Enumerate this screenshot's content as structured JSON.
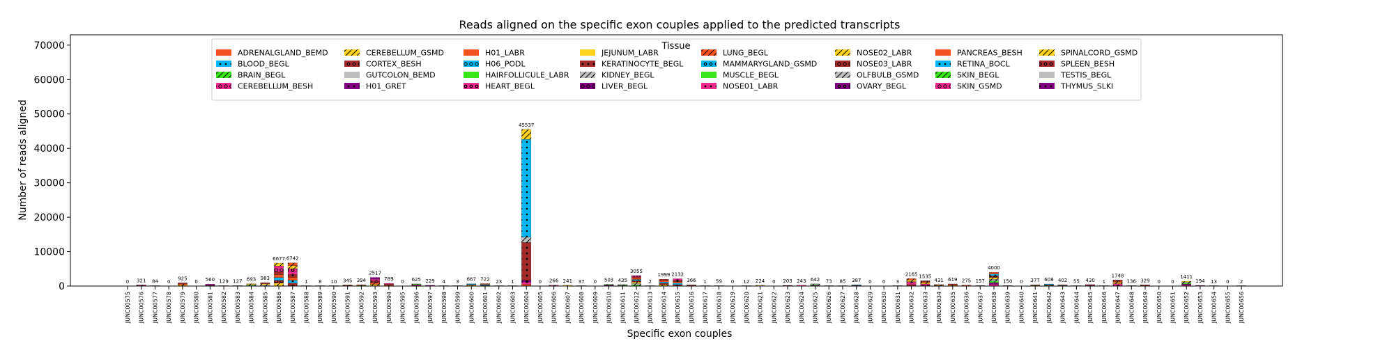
{
  "chart_data": {
    "type": "bar",
    "stacked": true,
    "title": "Reads aligned on the specific exon couples applied to the predicted transcripts",
    "xlabel": "Specific exon couples",
    "ylabel": "Number of reads aligned",
    "ylim": [
      0,
      73000
    ],
    "yticks": [
      0,
      10000,
      20000,
      30000,
      40000,
      50000,
      60000,
      70000
    ],
    "ytick_labels": [
      "0",
      "10000",
      "20000",
      "30000",
      "40000",
      "50000",
      "60000",
      "70000"
    ],
    "legend": {
      "title": "Tissue",
      "placement": "top-center",
      "entries": [
        {
          "label": "ADRENALGLAND_BEMD",
          "color": "#f4511e",
          "pattern": "solid"
        },
        {
          "label": "BLOOD_BEGL",
          "color": "#03b7f2",
          "pattern": "dots"
        },
        {
          "label": "BRAIN_BEGL",
          "color": "#39e61b",
          "pattern": "slash"
        },
        {
          "label": "CEREBELLUM_BESH",
          "color": "#ef2c8f",
          "pattern": "rings"
        },
        {
          "label": "CEREBELLUM_GSMD",
          "color": "#ffd21f",
          "pattern": "slash"
        },
        {
          "label": "CORTEX_BESH",
          "color": "#a52a2a",
          "pattern": "circles"
        },
        {
          "label": "GUTCOLON_BEMD",
          "color": "#bdbdbd",
          "pattern": "solid"
        },
        {
          "label": "H01_GRET",
          "color": "#800080",
          "pattern": "dots"
        },
        {
          "label": "H01_LABR",
          "color": "#f4511e",
          "pattern": "solid"
        },
        {
          "label": "H06_PODL",
          "color": "#03b7f2",
          "pattern": "rings"
        },
        {
          "label": "HAIRFOLLICULE_LABR",
          "color": "#39e61b",
          "pattern": "solid"
        },
        {
          "label": "HEART_BEGL",
          "color": "#ef2c8f",
          "pattern": "circles"
        },
        {
          "label": "JEJUNUM_LABR",
          "color": "#ffd21f",
          "pattern": "solid"
        },
        {
          "label": "KERATINOCYTE_BEGL",
          "color": "#a52a2a",
          "pattern": "dots"
        },
        {
          "label": "KIDNEY_BEGL",
          "color": "#bdbdbd",
          "pattern": "slash"
        },
        {
          "label": "LIVER_BEGL",
          "color": "#800080",
          "pattern": "rings"
        },
        {
          "label": "LUNG_BEGL",
          "color": "#f4511e",
          "pattern": "slash"
        },
        {
          "label": "MAMMARYGLAND_GSMD",
          "color": "#03b7f2",
          "pattern": "circles"
        },
        {
          "label": "MUSCLE_BEGL",
          "color": "#39e61b",
          "pattern": "solid"
        },
        {
          "label": "NOSE01_LABR",
          "color": "#ef2c8f",
          "pattern": "dots"
        },
        {
          "label": "NOSE02_LABR",
          "color": "#ffd21f",
          "pattern": "slash"
        },
        {
          "label": "NOSE03_LABR",
          "color": "#a52a2a",
          "pattern": "rings"
        },
        {
          "label": "OLFBULB_GSMD",
          "color": "#bdbdbd",
          "pattern": "slash"
        },
        {
          "label": "OVARY_BEGL",
          "color": "#800080",
          "pattern": "circles"
        },
        {
          "label": "PANCREAS_BESH",
          "color": "#f4511e",
          "pattern": "solid"
        },
        {
          "label": "RETINA_BOCL",
          "color": "#03b7f2",
          "pattern": "dots"
        },
        {
          "label": "SKIN_BEGL",
          "color": "#39e61b",
          "pattern": "slash"
        },
        {
          "label": "SKIN_GSMD",
          "color": "#ef2c8f",
          "pattern": "rings"
        },
        {
          "label": "SPINALCORD_GSMD",
          "color": "#ffd21f",
          "pattern": "slash"
        },
        {
          "label": "SPLEEN_BESH",
          "color": "#a52a2a",
          "pattern": "circles"
        },
        {
          "label": "TESTIS_BEGL",
          "color": "#bdbdbd",
          "pattern": "solid"
        },
        {
          "label": "THYMUS_SLKI",
          "color": "#800080",
          "pattern": "dots"
        }
      ]
    },
    "categories": [
      "JUNC00575",
      "JUNC00576",
      "JUNC00577",
      "JUNC00578",
      "JUNC00579",
      "JUNC00580",
      "JUNC00581",
      "JUNC00582",
      "JUNC00583",
      "JUNC00584",
      "JUNC00585",
      "JUNC00586",
      "JUNC00587",
      "JUNC00588",
      "JUNC00589",
      "JUNC00590",
      "JUNC00591",
      "JUNC00592",
      "JUNC00593",
      "JUNC00594",
      "JUNC00595",
      "JUNC00596",
      "JUNC00597",
      "JUNC00598",
      "JUNC00599",
      "JUNC00600",
      "JUNC00601",
      "JUNC00602",
      "JUNC00603",
      "JUNC00604",
      "JUNC00605",
      "JUNC00606",
      "JUNC00607",
      "JUNC00608",
      "JUNC00609",
      "JUNC00610",
      "JUNC00611",
      "JUNC00612",
      "JUNC00613",
      "JUNC00614",
      "JUNC00615",
      "JUNC00616",
      "JUNC00617",
      "JUNC00618",
      "JUNC00619",
      "JUNC00620",
      "JUNC00621",
      "JUNC00622",
      "JUNC00623",
      "JUNC00624",
      "JUNC00625",
      "JUNC00626",
      "JUNC00627",
      "JUNC00628",
      "JUNC00629",
      "JUNC00630",
      "JUNC00631",
      "JUNC00632",
      "JUNC00633",
      "JUNC00634",
      "JUNC00635",
      "JUNC00636",
      "JUNC00637",
      "JUNC00638",
      "JUNC00639",
      "JUNC00640",
      "JUNC00641",
      "JUNC00642",
      "JUNC00643",
      "JUNC00644",
      "JUNC00645",
      "JUNC00646",
      "JUNC00647",
      "JUNC00648",
      "JUNC00649",
      "JUNC00650",
      "JUNC00651",
      "JUNC00652",
      "JUNC00653",
      "JUNC00654",
      "JUNC00655",
      "JUNC00656"
    ],
    "totals": [
      0,
      321,
      84,
      0,
      925,
      0,
      560,
      129,
      127,
      693,
      983,
      6677,
      6742,
      1,
      8,
      10,
      345,
      394,
      2517,
      789,
      0,
      625,
      229,
      4,
      3,
      667,
      722,
      23,
      1,
      45537,
      0,
      266,
      241,
      37,
      0,
      503,
      435,
      3055,
      2,
      1999,
      2132,
      366,
      1,
      59,
      0,
      12,
      224,
      0,
      203,
      243,
      642,
      73,
      85,
      387,
      0,
      0,
      3,
      2165,
      1535,
      431,
      619,
      275,
      157,
      4000,
      150,
      0,
      377,
      608,
      402,
      55,
      430,
      1,
      1748,
      136,
      329,
      0,
      0,
      1411,
      194,
      13,
      0,
      2
    ],
    "total_labels": [
      "0",
      "321",
      "84",
      "0",
      "925",
      "0",
      "560",
      "129",
      "127",
      "693",
      "983",
      "6677",
      "6742",
      "1",
      "8",
      "10",
      "345",
      "394",
      "2517",
      "789",
      "0",
      "625",
      "229",
      "4",
      "3",
      "667",
      "722",
      "23",
      "1",
      "45537",
      "0",
      "266",
      "241",
      "37",
      "0",
      "503",
      "435",
      "3055",
      "2",
      "1999",
      "2132",
      "366",
      "1",
      "59",
      "0",
      "12",
      "224",
      "0",
      "203",
      "243",
      "642",
      "73",
      "85",
      "387",
      "0",
      "0",
      "3",
      "2165",
      "1535",
      "431",
      "619",
      "275",
      "157",
      "4000",
      "150",
      "0",
      "377",
      "608",
      "402",
      "55",
      "430",
      "1",
      "1748",
      "136",
      "329",
      "0",
      "0",
      "1411",
      "194",
      "13",
      "0",
      "2"
    ],
    "notable_stacks": [
      {
        "category": "JUNC00604",
        "segments": [
          {
            "tissue": "ADRENALGLAND_BEMD",
            "value": 500
          },
          {
            "tissue": "CEREBELLUM_BESH",
            "value": 700
          },
          {
            "tissue": "H01_GRET",
            "value": 500
          },
          {
            "tissue": "KERATINOCYTE_BEGL",
            "value": 11000
          },
          {
            "tissue": "KIDNEY_BEGL",
            "value": 1500
          },
          {
            "tissue": "RETINA_BOCL",
            "value": 28400
          },
          {
            "tissue": "SPINALCORD_GSMD",
            "value": 2937
          }
        ]
      }
    ]
  }
}
